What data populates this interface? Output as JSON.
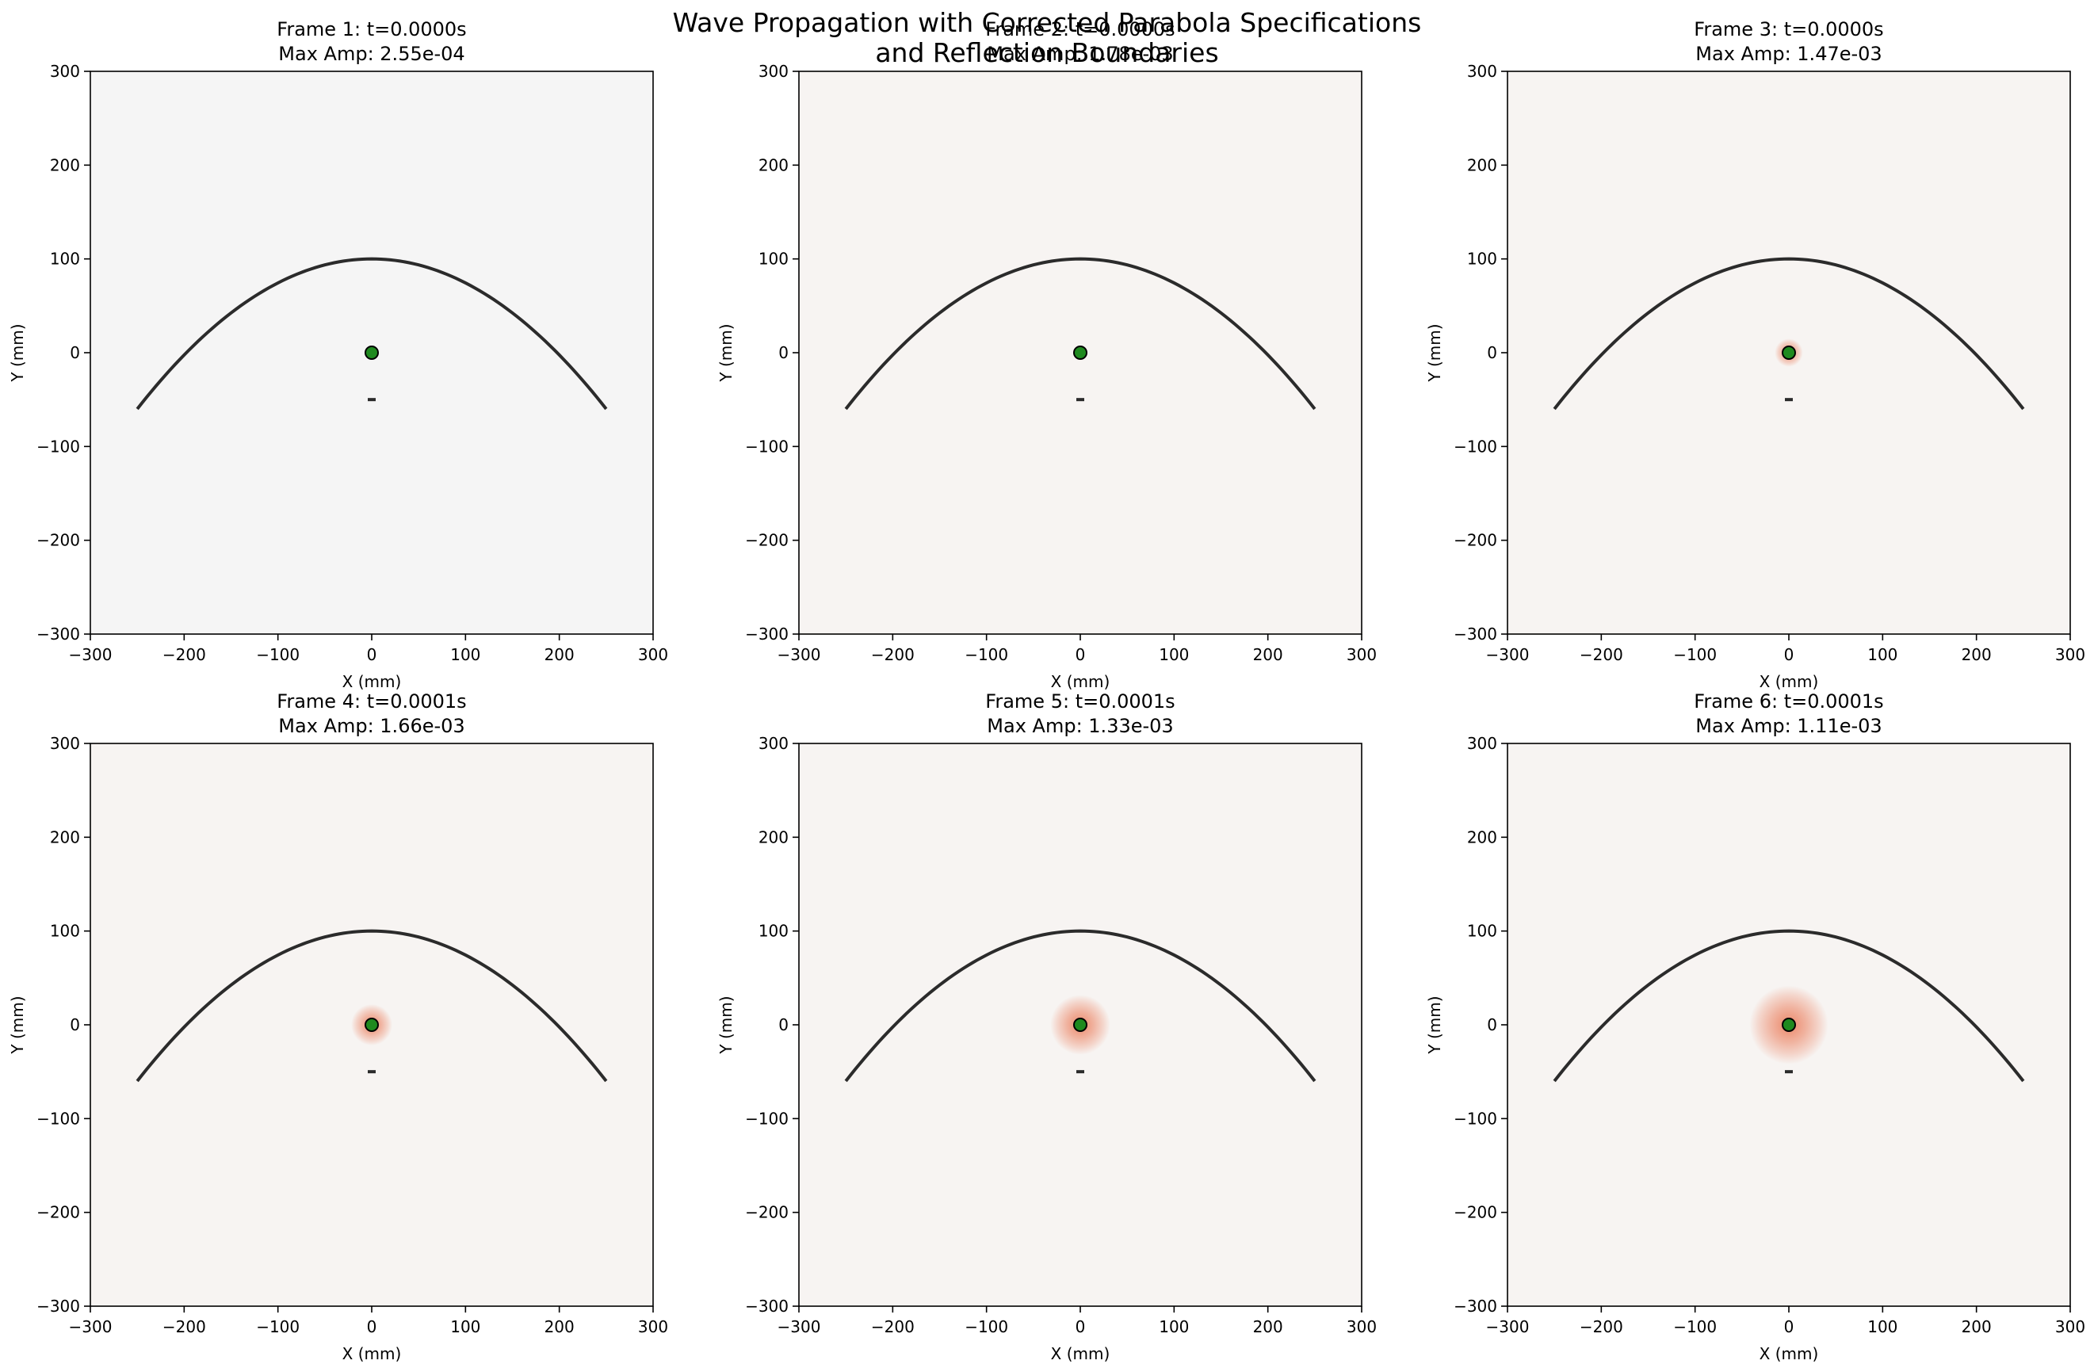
{
  "figure": {
    "title_line1": "Wave Propagation with Corrected Parabola Specifications",
    "title_line2": "and Reflection Boundaries"
  },
  "colors": {
    "background_field": "#f7f4f2",
    "background_field_frame1": "#f5f5f5",
    "parabola": "#2b2b2b",
    "receiver": "#1f8a1f",
    "receiver_edge": "#000000",
    "wave": "#e8643c"
  },
  "chart_data": [
    {
      "type": "heatmap",
      "title_line1": "Frame 1: t=0.0000s",
      "title_line2": "Max Amp: 2.55e-04",
      "xlabel": "X (mm)",
      "ylabel": "Y (mm)",
      "xlim": [
        -300,
        300
      ],
      "ylim": [
        -300,
        300
      ],
      "xticks": [
        -300,
        -200,
        -100,
        0,
        100,
        200,
        300
      ],
      "yticks": [
        -300,
        -200,
        -100,
        0,
        100,
        200,
        300
      ],
      "parabola": {
        "vertex": [
          0,
          100
        ],
        "x_range": [
          -250,
          250
        ],
        "y_at_ends": -60
      },
      "receiver": [
        0,
        0
      ],
      "source_marker": [
        0,
        -50
      ],
      "wave_radius_mm": 0,
      "field": "neutral"
    },
    {
      "type": "heatmap",
      "title_line1": "Frame 2: t=0.0000s",
      "title_line2": "Max Amp: 1.78e-03",
      "xlabel": "X (mm)",
      "ylabel": "Y (mm)",
      "xlim": [
        -300,
        300
      ],
      "ylim": [
        -300,
        300
      ],
      "xticks": [
        -300,
        -200,
        -100,
        0,
        100,
        200,
        300
      ],
      "yticks": [
        -300,
        -200,
        -100,
        0,
        100,
        200,
        300
      ],
      "parabola": {
        "vertex": [
          0,
          100
        ],
        "x_range": [
          -250,
          250
        ],
        "y_at_ends": -60
      },
      "receiver": [
        0,
        0
      ],
      "source_marker": [
        0,
        -50
      ],
      "wave_radius_mm": 8,
      "field": "warm"
    },
    {
      "type": "heatmap",
      "title_line1": "Frame 3: t=0.0000s",
      "title_line2": "Max Amp: 1.47e-03",
      "xlabel": "X (mm)",
      "ylabel": "Y (mm)",
      "xlim": [
        -300,
        300
      ],
      "ylim": [
        -300,
        300
      ],
      "xticks": [
        -300,
        -200,
        -100,
        0,
        100,
        200,
        300
      ],
      "yticks": [
        -300,
        -200,
        -100,
        0,
        100,
        200,
        300
      ],
      "parabola": {
        "vertex": [
          0,
          100
        ],
        "x_range": [
          -250,
          250
        ],
        "y_at_ends": -60
      },
      "receiver": [
        0,
        0
      ],
      "source_marker": [
        0,
        -50
      ],
      "wave_radius_mm": 15,
      "field": "warm"
    },
    {
      "type": "heatmap",
      "title_line1": "Frame 4: t=0.0001s",
      "title_line2": "Max Amp: 1.66e-03",
      "xlabel": "X (mm)",
      "ylabel": "Y (mm)",
      "xlim": [
        -300,
        300
      ],
      "ylim": [
        -300,
        300
      ],
      "xticks": [
        -300,
        -200,
        -100,
        0,
        100,
        200,
        300
      ],
      "yticks": [
        -300,
        -200,
        -100,
        0,
        100,
        200,
        300
      ],
      "parabola": {
        "vertex": [
          0,
          100
        ],
        "x_range": [
          -250,
          250
        ],
        "y_at_ends": -60
      },
      "receiver": [
        0,
        0
      ],
      "source_marker": [
        0,
        -50
      ],
      "wave_radius_mm": 22,
      "field": "warm"
    },
    {
      "type": "heatmap",
      "title_line1": "Frame 5: t=0.0001s",
      "title_line2": "Max Amp: 1.33e-03",
      "xlabel": "X (mm)",
      "ylabel": "Y (mm)",
      "xlim": [
        -300,
        300
      ],
      "ylim": [
        -300,
        300
      ],
      "xticks": [
        -300,
        -200,
        -100,
        0,
        100,
        200,
        300
      ],
      "yticks": [
        -300,
        -200,
        -100,
        0,
        100,
        200,
        300
      ],
      "parabola": {
        "vertex": [
          0,
          100
        ],
        "x_range": [
          -250,
          250
        ],
        "y_at_ends": -60
      },
      "receiver": [
        0,
        0
      ],
      "source_marker": [
        0,
        -50
      ],
      "wave_radius_mm": 32,
      "field": "warm"
    },
    {
      "type": "heatmap",
      "title_line1": "Frame 6: t=0.0001s",
      "title_line2": "Max Amp: 1.11e-03",
      "xlabel": "X (mm)",
      "ylabel": "Y (mm)",
      "xlim": [
        -300,
        300
      ],
      "ylim": [
        -300,
        300
      ],
      "xticks": [
        -300,
        -200,
        -100,
        0,
        100,
        200,
        300
      ],
      "yticks": [
        -300,
        -200,
        -100,
        0,
        100,
        200,
        300
      ],
      "parabola": {
        "vertex": [
          0,
          100
        ],
        "x_range": [
          -250,
          250
        ],
        "y_at_ends": -60
      },
      "receiver": [
        0,
        0
      ],
      "source_marker": [
        0,
        -50
      ],
      "wave_radius_mm": 42,
      "field": "warm"
    }
  ]
}
